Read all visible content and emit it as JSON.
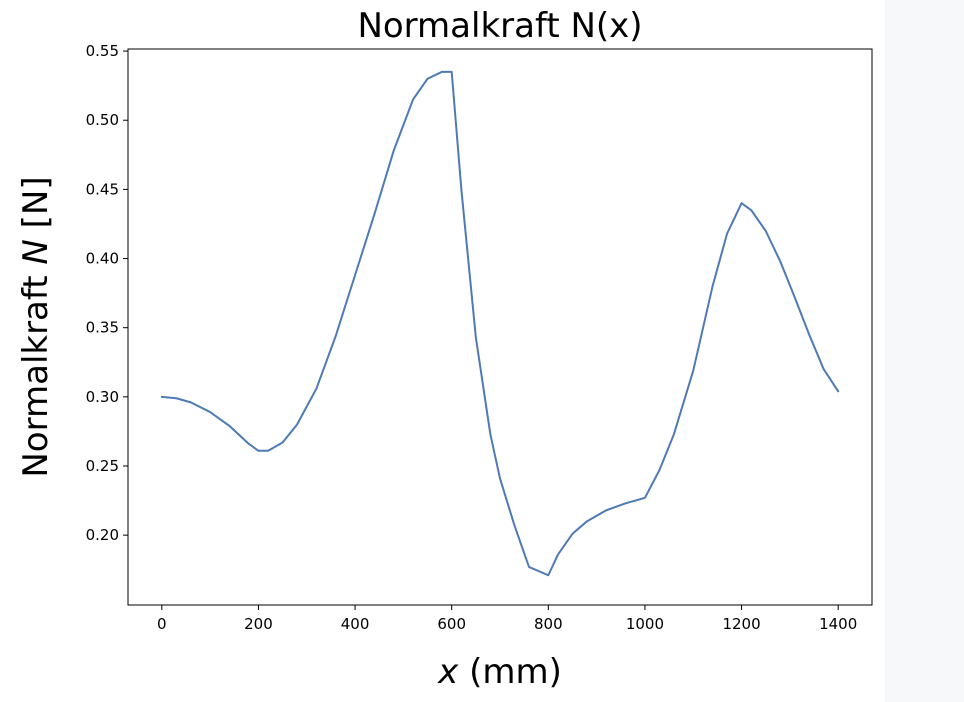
{
  "chart_data": {
    "type": "line",
    "title": "Normalkraft N(x)",
    "xlabel": {
      "var": "x",
      "rest": " (mm)"
    },
    "ylabel": {
      "pre": "Normalkraft ",
      "var": "N",
      "post": " [N]"
    },
    "xlim": [
      -70,
      1470
    ],
    "ylim": [
      0.1495,
      0.5515
    ],
    "xticks": [
      0,
      200,
      400,
      600,
      800,
      1000,
      1200,
      1400
    ],
    "yticks": [
      0.2,
      0.25,
      0.3,
      0.35,
      0.4,
      0.45,
      0.5,
      0.55
    ],
    "grid": false,
    "series": [
      {
        "color": "#4e7ab6",
        "x": [
          0,
          30,
          60,
          100,
          140,
          180,
          200,
          220,
          250,
          280,
          320,
          360,
          400,
          440,
          480,
          520,
          550,
          580,
          600,
          620,
          650,
          680,
          700,
          730,
          760,
          800,
          820,
          850,
          880,
          920,
          960,
          1000,
          1030,
          1060,
          1100,
          1140,
          1170,
          1200,
          1220,
          1250,
          1280,
          1310,
          1340,
          1370,
          1400
        ],
        "y": [
          0.3,
          0.299,
          0.296,
          0.289,
          0.279,
          0.266,
          0.261,
          0.261,
          0.267,
          0.28,
          0.306,
          0.344,
          0.388,
          0.432,
          0.478,
          0.515,
          0.53,
          0.535,
          0.535,
          0.45,
          0.343,
          0.273,
          0.241,
          0.207,
          0.177,
          0.171,
          0.186,
          0.201,
          0.21,
          0.218,
          0.223,
          0.227,
          0.247,
          0.273,
          0.319,
          0.38,
          0.418,
          0.44,
          0.435,
          0.42,
          0.398,
          0.372,
          0.345,
          0.32,
          0.304
        ]
      }
    ]
  }
}
